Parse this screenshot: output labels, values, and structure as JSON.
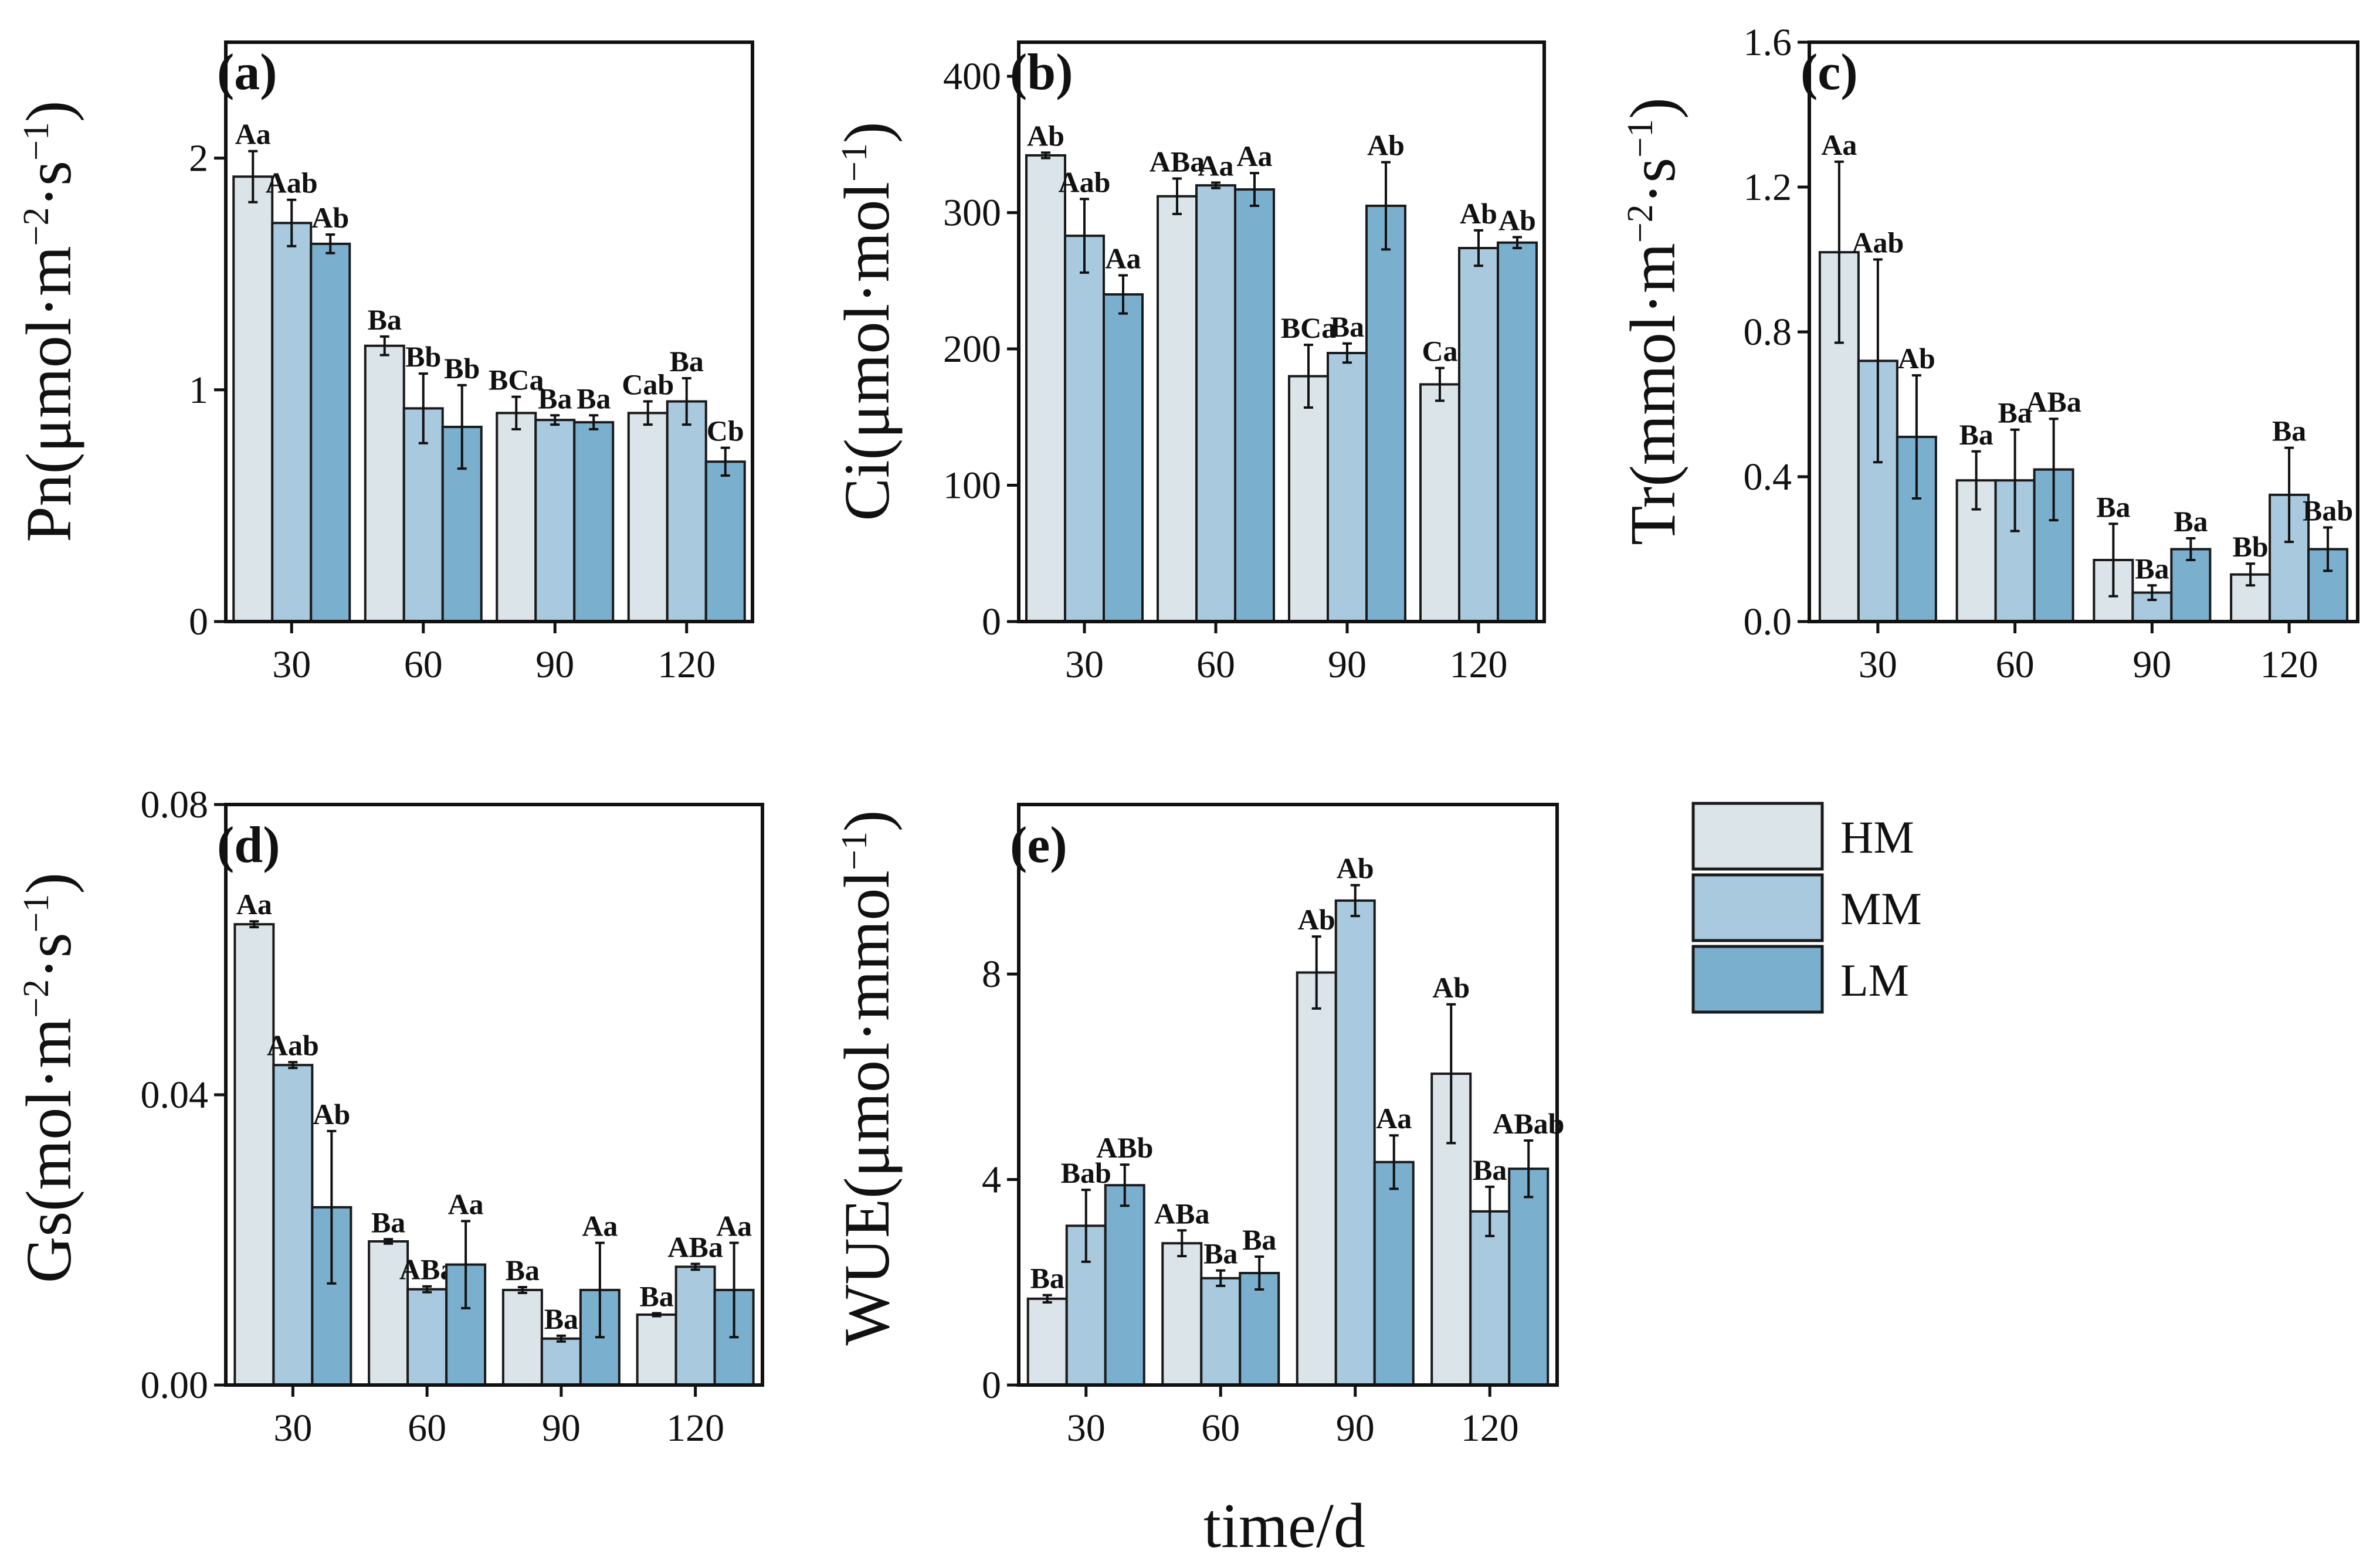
{
  "chart_data": {
    "type": "bar",
    "shared_xlabel": "time/d",
    "series_names": [
      "HM",
      "MM",
      "LM"
    ],
    "series_colors": [
      "#dae4e9",
      "#a9c9de",
      "#7bafce"
    ],
    "legend": {
      "entries": [
        "HM",
        "MM",
        "LM"
      ],
      "position": "right of panel e"
    },
    "panels": [
      {
        "id": "a",
        "panel_label": "(a)",
        "ylabel": {
          "base": "Pn(μmol·m",
          "sup1": "−2",
          "mid": "·s",
          "sup2": "−1",
          "end": ")"
        },
        "ylim": [
          0,
          2.5
        ],
        "yticks": [
          0,
          1,
          2
        ],
        "ytick_labels": [
          "0",
          "1",
          "2"
        ],
        "categories": [
          "30",
          "60",
          "90",
          "120"
        ],
        "series": [
          {
            "name": "HM",
            "values": [
              1.92,
              1.19,
              0.9,
              0.9
            ],
            "errors": [
              0.11,
              0.04,
              0.07,
              0.05
            ],
            "sig": [
              "Aa",
              "Ba",
              "BCa",
              "Cab"
            ]
          },
          {
            "name": "MM",
            "values": [
              1.72,
              0.92,
              0.87,
              0.95
            ],
            "errors": [
              0.1,
              0.15,
              0.02,
              0.1
            ],
            "sig": [
              "Aab",
              "Bb",
              "Ba",
              "Ba"
            ]
          },
          {
            "name": "LM",
            "values": [
              1.63,
              0.84,
              0.86,
              0.69
            ],
            "errors": [
              0.04,
              0.18,
              0.03,
              0.06
            ],
            "sig": [
              "Ab",
              "Bb",
              "Ba",
              "Cb"
            ]
          }
        ]
      },
      {
        "id": "b",
        "panel_label": "(b)",
        "ylabel": {
          "base": "Ci(μmol·mol",
          "sup1": "−1",
          "mid": "",
          "sup2": "",
          "end": ")"
        },
        "ylim": [
          0,
          425
        ],
        "yticks": [
          0,
          100,
          200,
          300,
          400
        ],
        "ytick_labels": [
          "0",
          "100",
          "200",
          "300",
          "400"
        ],
        "categories": [
          "30",
          "60",
          "90",
          "120"
        ],
        "series": [
          {
            "name": "HM",
            "values": [
              342,
              312,
              180,
              174
            ],
            "errors": [
              2,
              13,
              23,
              12
            ],
            "sig": [
              "Ab",
              "ABa",
              "BCa",
              "Ca"
            ]
          },
          {
            "name": "MM",
            "values": [
              283,
              320,
              197,
              274
            ],
            "errors": [
              27,
              2,
              7,
              13
            ],
            "sig": [
              "Aab",
              "Aa",
              "Ba",
              "Ab"
            ]
          },
          {
            "name": "LM",
            "values": [
              240,
              317,
              305,
              278
            ],
            "errors": [
              14,
              12,
              32,
              4
            ],
            "sig": [
              "Aa",
              "Aa",
              "Ab",
              "Ab"
            ]
          }
        ]
      },
      {
        "id": "c",
        "panel_label": "(c)",
        "ylabel": {
          "base": "Tr(mmol·m",
          "sup1": "−2",
          "mid": "·s",
          "sup2": "−1",
          "end": ")"
        },
        "ylim": [
          0,
          1.6
        ],
        "yticks": [
          0,
          0.4,
          0.8,
          1.2,
          1.6
        ],
        "ytick_labels": [
          "0.0",
          "0.4",
          "0.8",
          "1.2",
          "1.6"
        ],
        "categories": [
          "30",
          "60",
          "90",
          "120"
        ],
        "series": [
          {
            "name": "HM",
            "values": [
              1.02,
              0.39,
              0.17,
              0.13
            ],
            "errors": [
              0.25,
              0.08,
              0.1,
              0.03
            ],
            "sig": [
              "Aa",
              "Ba",
              "Ba",
              "Bb"
            ]
          },
          {
            "name": "MM",
            "values": [
              0.72,
              0.39,
              0.08,
              0.35
            ],
            "errors": [
              0.28,
              0.14,
              0.02,
              0.13
            ],
            "sig": [
              "Aab",
              "Ba",
              "Ba",
              "Ba"
            ]
          },
          {
            "name": "LM",
            "values": [
              0.51,
              0.42,
              0.2,
              0.2
            ],
            "errors": [
              0.17,
              0.14,
              0.03,
              0.06
            ],
            "sig": [
              "Ab",
              "ABa",
              "Ba",
              "Bab"
            ]
          }
        ]
      },
      {
        "id": "d",
        "panel_label": "(d)",
        "ylabel": {
          "base": "Gs(mol·m",
          "sup1": "−2",
          "mid": "·s",
          "sup2": "−1",
          "end": ")"
        },
        "ylim": [
          0,
          0.08
        ],
        "yticks": [
          0,
          0.04,
          0.08
        ],
        "ytick_labels": [
          "0.00",
          "0.04",
          "0.08"
        ],
        "categories": [
          "30",
          "60",
          "90",
          "120"
        ],
        "series": [
          {
            "name": "HM",
            "values": [
              0.0635,
              0.0198,
              0.0131,
              0.0097
            ],
            "errors": [
              0.0004,
              0.0003,
              0.0004,
              0.0002
            ],
            "sig": [
              "Aa",
              "Ba",
              "Ba",
              "Ba"
            ]
          },
          {
            "name": "MM",
            "values": [
              0.0441,
              0.0132,
              0.0064,
              0.0163
            ],
            "errors": [
              0.0004,
              0.0004,
              0.0004,
              0.0004
            ],
            "sig": [
              "Aab",
              "ABa",
              "Ba",
              "ABa"
            ]
          },
          {
            "name": "LM",
            "values": [
              0.0245,
              0.0166,
              0.0131,
              0.0131
            ],
            "errors": [
              0.0105,
              0.006,
              0.0065,
              0.0065
            ],
            "sig": [
              "Ab",
              "Aa",
              "Aa",
              "Aa"
            ]
          }
        ]
      },
      {
        "id": "e",
        "panel_label": "(e)",
        "ylabel": {
          "base": "WUE(μmol·mmol",
          "sup1": "−1",
          "mid": "",
          "sup2": "",
          "end": ")"
        },
        "ylim": [
          0,
          11.3
        ],
        "yticks": [
          0,
          4,
          8
        ],
        "ytick_labels": [
          "0",
          "4",
          "8"
        ],
        "categories": [
          "30",
          "60",
          "90",
          "120"
        ],
        "series": [
          {
            "name": "HM",
            "values": [
              1.68,
              2.76,
              8.03,
              6.06
            ],
            "errors": [
              0.07,
              0.25,
              0.7,
              1.35
            ],
            "sig": [
              "Ba",
              "ABa",
              "Ab",
              "Ab"
            ]
          },
          {
            "name": "MM",
            "values": [
              3.1,
              2.08,
              9.43,
              3.38
            ],
            "errors": [
              0.7,
              0.15,
              0.3,
              0.48
            ],
            "sig": [
              "Bab",
              "Ba",
              "Ab",
              "Ba"
            ]
          },
          {
            "name": "LM",
            "values": [
              3.89,
              2.18,
              4.34,
              4.21
            ],
            "errors": [
              0.4,
              0.32,
              0.52,
              0.55
            ],
            "sig": [
              "ABb",
              "Ba",
              "Aa",
              "ABab"
            ]
          }
        ]
      }
    ]
  }
}
